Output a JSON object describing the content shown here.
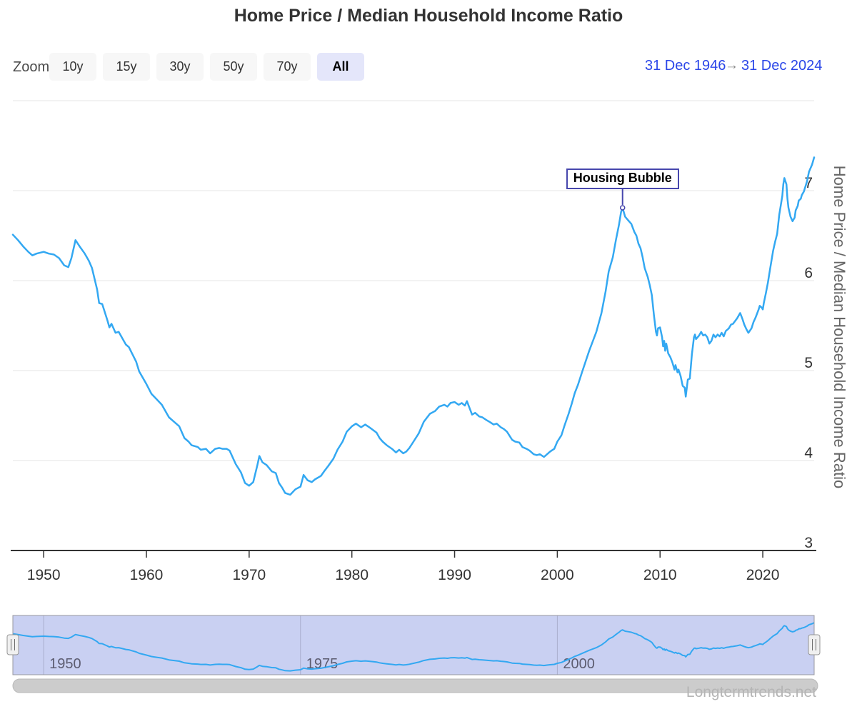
{
  "title": "Home Price / Median Household Income Ratio",
  "range_selector": {
    "label": "Zoom",
    "buttons": [
      {
        "label": "10y",
        "selected": false
      },
      {
        "label": "15y",
        "selected": false
      },
      {
        "label": "30y",
        "selected": false
      },
      {
        "label": "50y",
        "selected": false
      },
      {
        "label": "70y",
        "selected": false
      },
      {
        "label": "All",
        "selected": true
      }
    ],
    "from_date": "31 Dec 1946",
    "arrow": "→",
    "to_date": "31 Dec 2024"
  },
  "annotation": {
    "label": "Housing Bubble",
    "year": 2006.35,
    "value": 6.81
  },
  "watermark": "Longtermtrends.net",
  "colors": {
    "series": "#33a8f2",
    "annotation": "#4747ad",
    "date_text": "#2b46e8",
    "grid": "#e6e6e6",
    "axis_line": "#333333",
    "tick_label": "#333333",
    "navigator_mask": "#c9d0f2",
    "navigator_outline": "#97979f",
    "navigator_grid": "#a9aecd",
    "scrollbar": "#cccccc",
    "button_bg": "#f7f7f7",
    "selected_button_bg": "#e4e6fa"
  },
  "chart_data": {
    "type": "line",
    "title": "Home Price / Median Household Income Ratio",
    "xlabel": "",
    "ylabel": "Home Price / Median Household Income Ratio",
    "x_range": [
      1947,
      2025
    ],
    "ylim": [
      3,
      8
    ],
    "x_ticks": [
      1950,
      1960,
      1970,
      1980,
      1990,
      2000,
      2010,
      2020
    ],
    "y_ticks": [
      3,
      4,
      5,
      6,
      7
    ],
    "grid": true,
    "legend": false,
    "navigator_ticks": [
      1950,
      1975,
      2000
    ],
    "series": [
      {
        "name": "Home Price / Median Household Income Ratio",
        "points": [
          [
            1947.0,
            6.51
          ],
          [
            1947.5,
            6.45
          ],
          [
            1948.0,
            6.38
          ],
          [
            1948.5,
            6.32
          ],
          [
            1948.9,
            6.28
          ],
          [
            1949.3,
            6.3
          ],
          [
            1950.0,
            6.32
          ],
          [
            1950.5,
            6.3
          ],
          [
            1951.0,
            6.29
          ],
          [
            1951.5,
            6.25
          ],
          [
            1952.0,
            6.17
          ],
          [
            1952.4,
            6.15
          ],
          [
            1952.7,
            6.25
          ],
          [
            1953.1,
            6.45
          ],
          [
            1953.5,
            6.38
          ],
          [
            1954.0,
            6.3
          ],
          [
            1954.4,
            6.22
          ],
          [
            1954.7,
            6.14
          ],
          [
            1955.2,
            5.9
          ],
          [
            1955.4,
            5.75
          ],
          [
            1955.7,
            5.74
          ],
          [
            1956.2,
            5.56
          ],
          [
            1956.4,
            5.48
          ],
          [
            1956.6,
            5.52
          ],
          [
            1957.0,
            5.42
          ],
          [
            1957.3,
            5.43
          ],
          [
            1957.7,
            5.35
          ],
          [
            1958.0,
            5.29
          ],
          [
            1958.3,
            5.26
          ],
          [
            1958.6,
            5.19
          ],
          [
            1959.0,
            5.1
          ],
          [
            1959.3,
            4.99
          ],
          [
            1960.0,
            4.85
          ],
          [
            1960.5,
            4.74
          ],
          [
            1961.0,
            4.68
          ],
          [
            1961.5,
            4.62
          ],
          [
            1962.2,
            4.48
          ],
          [
            1962.7,
            4.43
          ],
          [
            1963.2,
            4.38
          ],
          [
            1963.7,
            4.25
          ],
          [
            1964.1,
            4.21
          ],
          [
            1964.4,
            4.17
          ],
          [
            1965.0,
            4.15
          ],
          [
            1965.3,
            4.12
          ],
          [
            1965.8,
            4.13
          ],
          [
            1966.2,
            4.08
          ],
          [
            1966.7,
            4.13
          ],
          [
            1967.1,
            4.14
          ],
          [
            1967.4,
            4.13
          ],
          [
            1967.8,
            4.13
          ],
          [
            1968.1,
            4.11
          ],
          [
            1968.7,
            3.96
          ],
          [
            1969.2,
            3.87
          ],
          [
            1969.6,
            3.75
          ],
          [
            1970.0,
            3.72
          ],
          [
            1970.4,
            3.76
          ],
          [
            1970.8,
            3.95
          ],
          [
            1971.0,
            4.05
          ],
          [
            1971.3,
            3.98
          ],
          [
            1971.7,
            3.95
          ],
          [
            1972.2,
            3.88
          ],
          [
            1972.6,
            3.86
          ],
          [
            1972.9,
            3.75
          ],
          [
            1973.2,
            3.7
          ],
          [
            1973.5,
            3.64
          ],
          [
            1974.0,
            3.62
          ],
          [
            1974.5,
            3.68
          ],
          [
            1975.0,
            3.71
          ],
          [
            1975.3,
            3.84
          ],
          [
            1975.7,
            3.78
          ],
          [
            1976.1,
            3.76
          ],
          [
            1976.4,
            3.79
          ],
          [
            1977.0,
            3.83
          ],
          [
            1977.3,
            3.88
          ],
          [
            1977.7,
            3.94
          ],
          [
            1978.2,
            4.02
          ],
          [
            1978.6,
            4.12
          ],
          [
            1979.1,
            4.21
          ],
          [
            1979.5,
            4.32
          ],
          [
            1980.0,
            4.38
          ],
          [
            1980.4,
            4.41
          ],
          [
            1980.9,
            4.37
          ],
          [
            1981.3,
            4.4
          ],
          [
            1981.7,
            4.37
          ],
          [
            1982.4,
            4.31
          ],
          [
            1982.7,
            4.25
          ],
          [
            1983.0,
            4.21
          ],
          [
            1983.4,
            4.17
          ],
          [
            1983.9,
            4.13
          ],
          [
            1984.3,
            4.09
          ],
          [
            1984.6,
            4.12
          ],
          [
            1985.0,
            4.08
          ],
          [
            1985.3,
            4.1
          ],
          [
            1985.6,
            4.14
          ],
          [
            1986.0,
            4.21
          ],
          [
            1986.5,
            4.3
          ],
          [
            1987.0,
            4.43
          ],
          [
            1987.6,
            4.52
          ],
          [
            1988.1,
            4.55
          ],
          [
            1988.5,
            4.6
          ],
          [
            1989.0,
            4.62
          ],
          [
            1989.3,
            4.6
          ],
          [
            1989.6,
            4.64
          ],
          [
            1990.0,
            4.65
          ],
          [
            1990.4,
            4.62
          ],
          [
            1990.7,
            4.64
          ],
          [
            1991.0,
            4.61
          ],
          [
            1991.2,
            4.66
          ],
          [
            1991.7,
            4.51
          ],
          [
            1992.0,
            4.53
          ],
          [
            1992.4,
            4.49
          ],
          [
            1992.7,
            4.48
          ],
          [
            1993.1,
            4.45
          ],
          [
            1993.4,
            4.43
          ],
          [
            1993.8,
            4.4
          ],
          [
            1994.1,
            4.41
          ],
          [
            1994.5,
            4.37
          ],
          [
            1994.8,
            4.35
          ],
          [
            1995.1,
            4.32
          ],
          [
            1995.6,
            4.23
          ],
          [
            1995.9,
            4.21
          ],
          [
            1996.3,
            4.2
          ],
          [
            1996.6,
            4.15
          ],
          [
            1997.0,
            4.13
          ],
          [
            1997.3,
            4.11
          ],
          [
            1997.7,
            4.07
          ],
          [
            1998.0,
            4.06
          ],
          [
            1998.3,
            4.07
          ],
          [
            1998.7,
            4.04
          ],
          [
            1999.0,
            4.07
          ],
          [
            1999.3,
            4.1
          ],
          [
            1999.7,
            4.13
          ],
          [
            2000.0,
            4.21
          ],
          [
            2000.4,
            4.28
          ],
          [
            2000.7,
            4.39
          ],
          [
            2001.1,
            4.52
          ],
          [
            2001.4,
            4.63
          ],
          [
            2001.7,
            4.75
          ],
          [
            2002.0,
            4.84
          ],
          [
            2002.4,
            4.98
          ],
          [
            2003.1,
            5.22
          ],
          [
            2003.8,
            5.43
          ],
          [
            2004.3,
            5.64
          ],
          [
            2004.7,
            5.88
          ],
          [
            2005.0,
            6.1
          ],
          [
            2005.4,
            6.26
          ],
          [
            2005.7,
            6.45
          ],
          [
            2006.0,
            6.62
          ],
          [
            2006.2,
            6.76
          ],
          [
            2006.35,
            6.81
          ],
          [
            2006.6,
            6.71
          ],
          [
            2006.9,
            6.67
          ],
          [
            2007.2,
            6.63
          ],
          [
            2007.5,
            6.54
          ],
          [
            2007.7,
            6.5
          ],
          [
            2007.9,
            6.41
          ],
          [
            2008.1,
            6.36
          ],
          [
            2008.3,
            6.26
          ],
          [
            2008.5,
            6.14
          ],
          [
            2008.8,
            6.04
          ],
          [
            2009.0,
            5.95
          ],
          [
            2009.2,
            5.84
          ],
          [
            2009.4,
            5.62
          ],
          [
            2009.6,
            5.43
          ],
          [
            2009.7,
            5.39
          ],
          [
            2009.8,
            5.47
          ],
          [
            2010.0,
            5.48
          ],
          [
            2010.2,
            5.37
          ],
          [
            2010.3,
            5.27
          ],
          [
            2010.4,
            5.33
          ],
          [
            2010.5,
            5.22
          ],
          [
            2010.6,
            5.3
          ],
          [
            2010.8,
            5.19
          ],
          [
            2011.0,
            5.15
          ],
          [
            2011.2,
            5.09
          ],
          [
            2011.4,
            5.01
          ],
          [
            2011.5,
            5.06
          ],
          [
            2011.7,
            4.98
          ],
          [
            2011.8,
            5.01
          ],
          [
            2012.0,
            4.94
          ],
          [
            2012.2,
            4.83
          ],
          [
            2012.4,
            4.81
          ],
          [
            2012.5,
            4.71
          ],
          [
            2012.7,
            4.9
          ],
          [
            2012.9,
            4.91
          ],
          [
            2013.1,
            5.18
          ],
          [
            2013.3,
            5.37
          ],
          [
            2013.4,
            5.4
          ],
          [
            2013.5,
            5.35
          ],
          [
            2013.8,
            5.39
          ],
          [
            2014.0,
            5.43
          ],
          [
            2014.2,
            5.39
          ],
          [
            2014.4,
            5.4
          ],
          [
            2014.6,
            5.37
          ],
          [
            2014.8,
            5.3
          ],
          [
            2015.0,
            5.33
          ],
          [
            2015.2,
            5.4
          ],
          [
            2015.4,
            5.37
          ],
          [
            2015.6,
            5.4
          ],
          [
            2015.8,
            5.38
          ],
          [
            2016.0,
            5.42
          ],
          [
            2016.2,
            5.38
          ],
          [
            2016.4,
            5.44
          ],
          [
            2016.7,
            5.47
          ],
          [
            2016.9,
            5.51
          ],
          [
            2017.1,
            5.52
          ],
          [
            2017.5,
            5.58
          ],
          [
            2017.8,
            5.64
          ],
          [
            2018.0,
            5.58
          ],
          [
            2018.2,
            5.51
          ],
          [
            2018.4,
            5.46
          ],
          [
            2018.6,
            5.42
          ],
          [
            2018.9,
            5.47
          ],
          [
            2019.1,
            5.54
          ],
          [
            2019.3,
            5.59
          ],
          [
            2019.6,
            5.68
          ],
          [
            2019.7,
            5.72
          ],
          [
            2019.9,
            5.7
          ],
          [
            2020.0,
            5.68
          ],
          [
            2020.1,
            5.75
          ],
          [
            2020.3,
            5.86
          ],
          [
            2020.5,
            5.98
          ],
          [
            2020.7,
            6.12
          ],
          [
            2021.0,
            6.33
          ],
          [
            2021.2,
            6.43
          ],
          [
            2021.4,
            6.52
          ],
          [
            2021.6,
            6.73
          ],
          [
            2021.9,
            6.94
          ],
          [
            2022.0,
            7.07
          ],
          [
            2022.1,
            7.14
          ],
          [
            2022.3,
            7.07
          ],
          [
            2022.4,
            6.91
          ],
          [
            2022.5,
            6.81
          ],
          [
            2022.7,
            6.71
          ],
          [
            2022.9,
            6.66
          ],
          [
            2023.1,
            6.7
          ],
          [
            2023.2,
            6.78
          ],
          [
            2023.4,
            6.83
          ],
          [
            2023.5,
            6.89
          ],
          [
            2023.7,
            6.91
          ],
          [
            2023.8,
            6.95
          ],
          [
            2024.0,
            6.99
          ],
          [
            2024.3,
            7.1
          ],
          [
            2024.5,
            7.21
          ],
          [
            2024.8,
            7.29
          ],
          [
            2025.0,
            7.37
          ]
        ]
      }
    ]
  }
}
